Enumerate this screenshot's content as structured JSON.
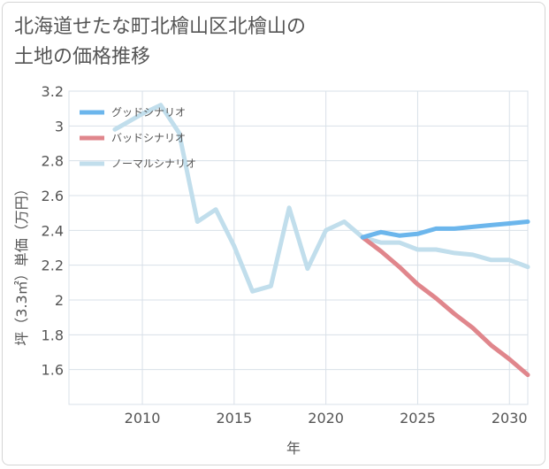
{
  "title": "北海道せたな町北檜山区北檜山の土地の価格推移",
  "chart_data": {
    "type": "line",
    "title": "北海道せたな町北檜山区北檜山の土地の価格推移",
    "xlabel": "年",
    "ylabel": "坪（3.3㎡）単価（万円）",
    "xlim": [
      2006,
      2031
    ],
    "ylim": [
      1.4,
      3.2
    ],
    "x_ticks": [
      2010,
      2015,
      2020,
      2025,
      2030
    ],
    "y_ticks": [
      1.6,
      1.8,
      2,
      2.2,
      2.4,
      2.6,
      2.8,
      3,
      3.2
    ],
    "grid": true,
    "legend_position": "top-left",
    "series": [
      {
        "name": "グッドシナリオ",
        "color": "#6cb6ec",
        "x": [
          2022,
          2023,
          2024,
          2025,
          2026,
          2027,
          2028,
          2029,
          2030,
          2031
        ],
        "y": [
          2.36,
          2.39,
          2.37,
          2.38,
          2.41,
          2.41,
          2.42,
          2.43,
          2.44,
          2.45
        ]
      },
      {
        "name": "バッドシナリオ",
        "color": "#e0868c",
        "x": [
          2022,
          2023,
          2024,
          2025,
          2026,
          2027,
          2028,
          2029,
          2030,
          2031
        ],
        "y": [
          2.36,
          2.28,
          2.19,
          2.09,
          2.01,
          1.92,
          1.84,
          1.74,
          1.66,
          1.57
        ]
      },
      {
        "name": "ノーマルシナリオ",
        "color": "#c1deec",
        "x": [
          2008.5,
          2009,
          2010,
          2011,
          2012,
          2013,
          2014,
          2015,
          2016,
          2017,
          2018,
          2019,
          2020,
          2021,
          2022,
          2023,
          2024,
          2025,
          2026,
          2027,
          2028,
          2029,
          2030,
          2031
        ],
        "y": [
          2.98,
          3.01,
          3.07,
          3.12,
          2.96,
          2.45,
          2.52,
          2.31,
          2.05,
          2.08,
          2.53,
          2.18,
          2.4,
          2.45,
          2.36,
          2.33,
          2.33,
          2.29,
          2.29,
          2.27,
          2.26,
          2.23,
          2.23,
          2.19
        ]
      }
    ]
  }
}
